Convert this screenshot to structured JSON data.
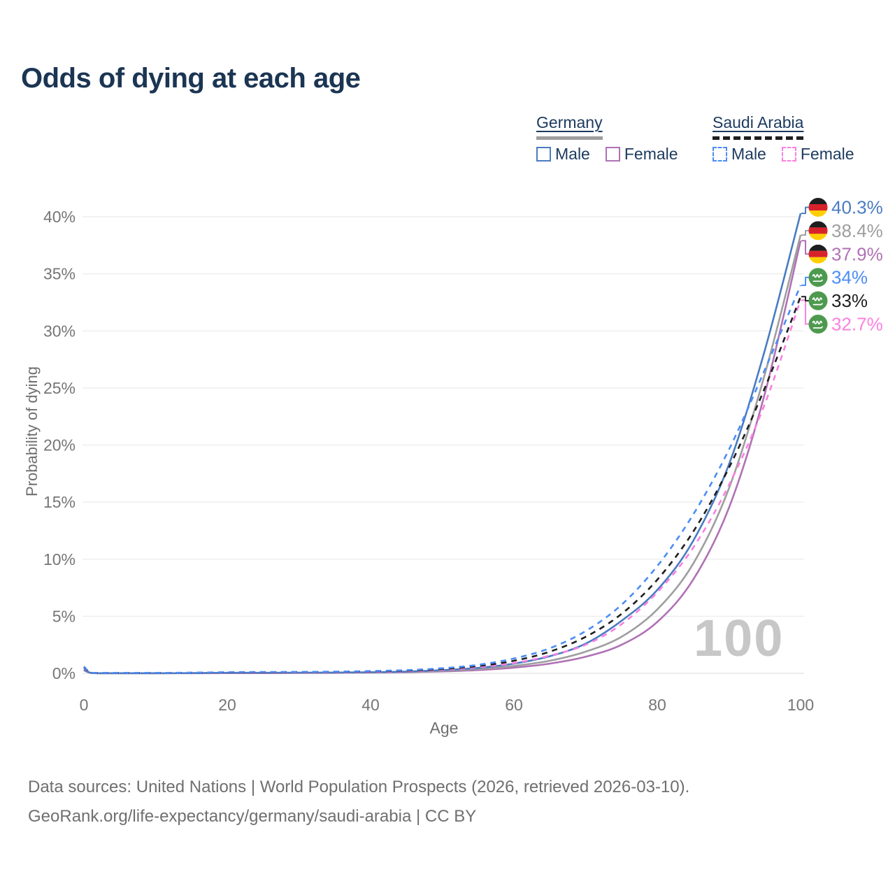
{
  "title": "Odds of dying at each age",
  "legend": {
    "groups": [
      {
        "label": "Germany",
        "line_style": "solid",
        "line_color": "#9e9e9e",
        "items": [
          {
            "label": "Male",
            "color": "#4a7cc0",
            "dash": false
          },
          {
            "label": "Female",
            "color": "#b071b5",
            "dash": false
          }
        ]
      },
      {
        "label": "Saudi Arabia",
        "line_style": "dashed",
        "line_color": "#1f1f1f",
        "items": [
          {
            "label": "Male",
            "color": "#4b8df5",
            "dash": true
          },
          {
            "label": "Female",
            "color": "#fb80e1",
            "dash": true
          }
        ]
      }
    ]
  },
  "chart_data": {
    "type": "line",
    "title": "Odds of dying at each age",
    "xlabel": "Age",
    "ylabel": "Probability of dying",
    "xlim": [
      0,
      100
    ],
    "ylim": [
      0,
      40
    ],
    "xticks": [
      0,
      20,
      40,
      60,
      80,
      100
    ],
    "yticks": [
      0,
      5,
      10,
      15,
      20,
      25,
      30,
      35,
      40
    ],
    "ytick_suffix": "%",
    "grid": "horizontal-only",
    "legend_position": "top-right",
    "x": [
      0,
      1,
      3,
      5,
      10,
      15,
      20,
      25,
      30,
      35,
      40,
      45,
      50,
      55,
      60,
      65,
      70,
      75,
      80,
      85,
      90,
      95,
      100
    ],
    "series": [
      {
        "name": "Germany Female",
        "country": "Germany",
        "sex": "Female",
        "color": "#b071b5",
        "dash": false,
        "flag": "de",
        "end_label": "37.9%",
        "label_row": 2,
        "values": [
          0.27,
          0.03,
          0.01,
          0.01,
          0.01,
          0.01,
          0.02,
          0.02,
          0.03,
          0.04,
          0.06,
          0.1,
          0.17,
          0.29,
          0.5,
          0.85,
          1.45,
          2.5,
          4.5,
          8.2,
          14.5,
          24.5,
          37.9
        ]
      },
      {
        "name": "Germany Both sexes",
        "country": "Germany",
        "sex": "Both",
        "color": "#9e9e9e",
        "dash": false,
        "flag": "de",
        "end_label": "38.4%",
        "label_row": 1,
        "values": [
          0.3,
          0.03,
          0.01,
          0.01,
          0.01,
          0.02,
          0.04,
          0.04,
          0.05,
          0.06,
          0.08,
          0.13,
          0.22,
          0.38,
          0.65,
          1.1,
          1.9,
          3.2,
          5.6,
          9.6,
          16.2,
          26.2,
          38.4
        ]
      },
      {
        "name": "Germany Male",
        "country": "Germany",
        "sex": "Male",
        "color": "#4a7cc0",
        "dash": false,
        "flag": "de",
        "end_label": "40.3%",
        "label_row": 0,
        "values": [
          0.33,
          0.04,
          0.01,
          0.01,
          0.01,
          0.02,
          0.05,
          0.05,
          0.06,
          0.07,
          0.1,
          0.16,
          0.28,
          0.48,
          0.85,
          1.5,
          2.6,
          4.6,
          7.3,
          11.6,
          18.3,
          28.3,
          40.3
        ]
      },
      {
        "name": "Saudi Arabia Female",
        "country": "Saudi Arabia",
        "sex": "Female",
        "color": "#fb80e1",
        "dash": true,
        "flag": "sa",
        "end_label": "32.7%",
        "label_row": 5,
        "values": [
          0.5,
          0.05,
          0.03,
          0.03,
          0.03,
          0.04,
          0.06,
          0.07,
          0.08,
          0.1,
          0.13,
          0.19,
          0.31,
          0.53,
          0.9,
          1.55,
          2.5,
          4.3,
          7.1,
          11.0,
          16.5,
          23.6,
          32.7
        ]
      },
      {
        "name": "Saudi Arabia Both sexes",
        "country": "Saudi Arabia",
        "sex": "Both",
        "color": "#1f1f1f",
        "dash": true,
        "flag": "sa",
        "end_label": "33%",
        "label_row": 4,
        "values": [
          0.55,
          0.06,
          0.035,
          0.035,
          0.035,
          0.05,
          0.08,
          0.1,
          0.11,
          0.13,
          0.17,
          0.24,
          0.38,
          0.64,
          1.1,
          1.9,
          3.2,
          5.2,
          8.2,
          12.4,
          18.0,
          25.0,
          33.0
        ]
      },
      {
        "name": "Saudi Arabia Male",
        "country": "Saudi Arabia",
        "sex": "Male",
        "color": "#4b8df5",
        "dash": true,
        "flag": "sa",
        "end_label": "34%",
        "label_row": 3,
        "values": [
          0.6,
          0.07,
          0.04,
          0.04,
          0.04,
          0.06,
          0.1,
          0.12,
          0.13,
          0.15,
          0.2,
          0.28,
          0.45,
          0.75,
          1.3,
          2.2,
          3.7,
          6.0,
          9.4,
          13.9,
          19.6,
          26.6,
          34.0
        ]
      }
    ]
  },
  "watermark": "100",
  "footer": {
    "line1": "Data sources: United Nations | World Population Prospects (2026, retrieved 2026-03-10).",
    "line2": "GeoRank.org/life-expectancy/germany/saudi-arabia | CC BY"
  },
  "flags": {
    "de": {
      "stripes": [
        "#1e1e1e",
        "#d8222a",
        "#ffce00"
      ]
    },
    "sa": {
      "bg": "#4d9a4f",
      "glyph": "#ffffff"
    }
  },
  "colors": {
    "title": "#1b3553",
    "legend_text": "#1d3a5f",
    "axis_text": "#767676",
    "axis_title": "#6f6f6f",
    "grid": "#ececec",
    "baseline": "#e2e2e2",
    "watermark": "#c7c7c7",
    "footer_text": "#6f6f6f"
  }
}
